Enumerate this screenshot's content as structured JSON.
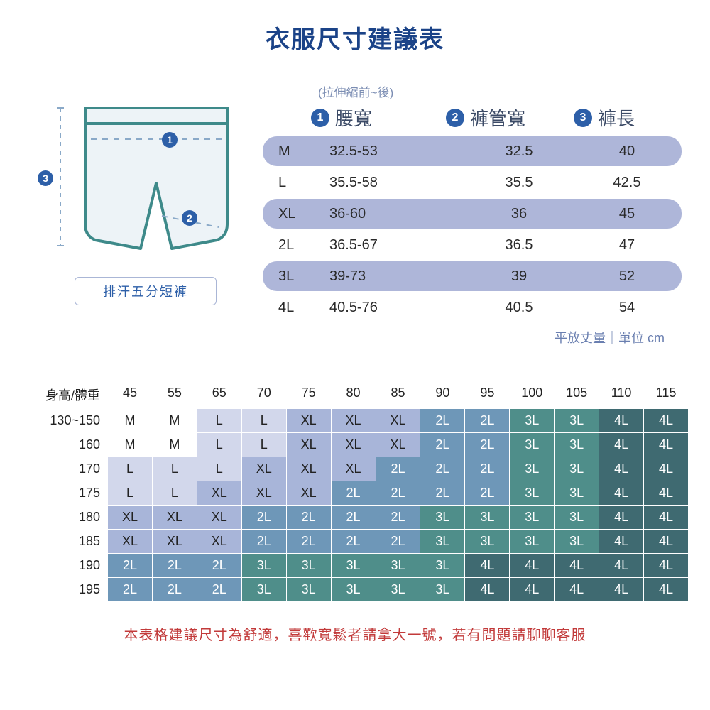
{
  "title": "衣服尺寸建議表",
  "diagram": {
    "caption": "排汗五分短褲",
    "markers": {
      "waist": "1",
      "leg": "2",
      "length": "3"
    },
    "colors": {
      "line": "#3e8a8a",
      "dash": "#8aa9c8",
      "bg": "#edf3f7"
    }
  },
  "subnote": "(拉伸縮前~後)",
  "columns": [
    {
      "num": "1",
      "label": "腰寬"
    },
    {
      "num": "2",
      "label": "褲管寬"
    },
    {
      "num": "3",
      "label": "褲長"
    }
  ],
  "sizeRows": [
    {
      "alt": true,
      "size": "M",
      "waist": "32.5-53",
      "leg": "32.5",
      "len": "40"
    },
    {
      "alt": false,
      "size": "L",
      "waist": "35.5-58",
      "leg": "35.5",
      "len": "42.5"
    },
    {
      "alt": true,
      "size": "XL",
      "waist": "36-60",
      "leg": "36",
      "len": "45"
    },
    {
      "alt": false,
      "size": "2L",
      "waist": "36.5-67",
      "leg": "36.5",
      "len": "47"
    },
    {
      "alt": true,
      "size": "3L",
      "waist": "39-73",
      "leg": "39",
      "len": "52"
    },
    {
      "alt": false,
      "size": "4L",
      "waist": "40.5-76",
      "leg": "40.5",
      "len": "54"
    }
  ],
  "unitNote": "平放丈量｜單位 cm",
  "grid": {
    "cornerLabel": "身高/體重",
    "weights": [
      "45",
      "55",
      "65",
      "70",
      "75",
      "80",
      "85",
      "90",
      "95",
      "100",
      "105",
      "110",
      "115"
    ],
    "heights": [
      "130~150",
      "160",
      "170",
      "175",
      "180",
      "185",
      "190",
      "195"
    ],
    "cells": [
      [
        "M",
        "M",
        "L",
        "L",
        "XL",
        "XL",
        "XL",
        "2L",
        "2L",
        "3L",
        "3L",
        "4L",
        "4L"
      ],
      [
        "M",
        "M",
        "L",
        "L",
        "XL",
        "XL",
        "XL",
        "2L",
        "2L",
        "3L",
        "3L",
        "4L",
        "4L"
      ],
      [
        "L",
        "L",
        "L",
        "XL",
        "XL",
        "XL",
        "2L",
        "2L",
        "2L",
        "3L",
        "3L",
        "4L",
        "4L"
      ],
      [
        "L",
        "L",
        "XL",
        "XL",
        "XL",
        "2L",
        "2L",
        "2L",
        "2L",
        "3L",
        "3L",
        "4L",
        "4L"
      ],
      [
        "XL",
        "XL",
        "XL",
        "2L",
        "2L",
        "2L",
        "2L",
        "3L",
        "3L",
        "3L",
        "3L",
        "4L",
        "4L"
      ],
      [
        "XL",
        "XL",
        "XL",
        "2L",
        "2L",
        "2L",
        "2L",
        "3L",
        "3L",
        "3L",
        "3L",
        "4L",
        "4L"
      ],
      [
        "2L",
        "2L",
        "2L",
        "3L",
        "3L",
        "3L",
        "3L",
        "3L",
        "4L",
        "4L",
        "4L",
        "4L",
        "4L"
      ],
      [
        "2L",
        "2L",
        "2L",
        "3L",
        "3L",
        "3L",
        "3L",
        "3L",
        "4L",
        "4L",
        "4L",
        "4L",
        "4L"
      ]
    ],
    "colors": {
      "M": "#ffffff",
      "L": "#d2d7eb",
      "XL": "#a8b5d9",
      "2L": "#6e97b8",
      "3L": "#4f8e8a",
      "4L": "#3f6a71"
    },
    "textColors": {
      "M": "#222",
      "L": "#222",
      "XL": "#222",
      "2L": "#ffffff",
      "3L": "#ffffff",
      "4L": "#ffffff"
    }
  },
  "footer": "本表格建議尺寸為舒適，喜歡寬鬆者請拿大一號，若有問題請聊聊客服"
}
